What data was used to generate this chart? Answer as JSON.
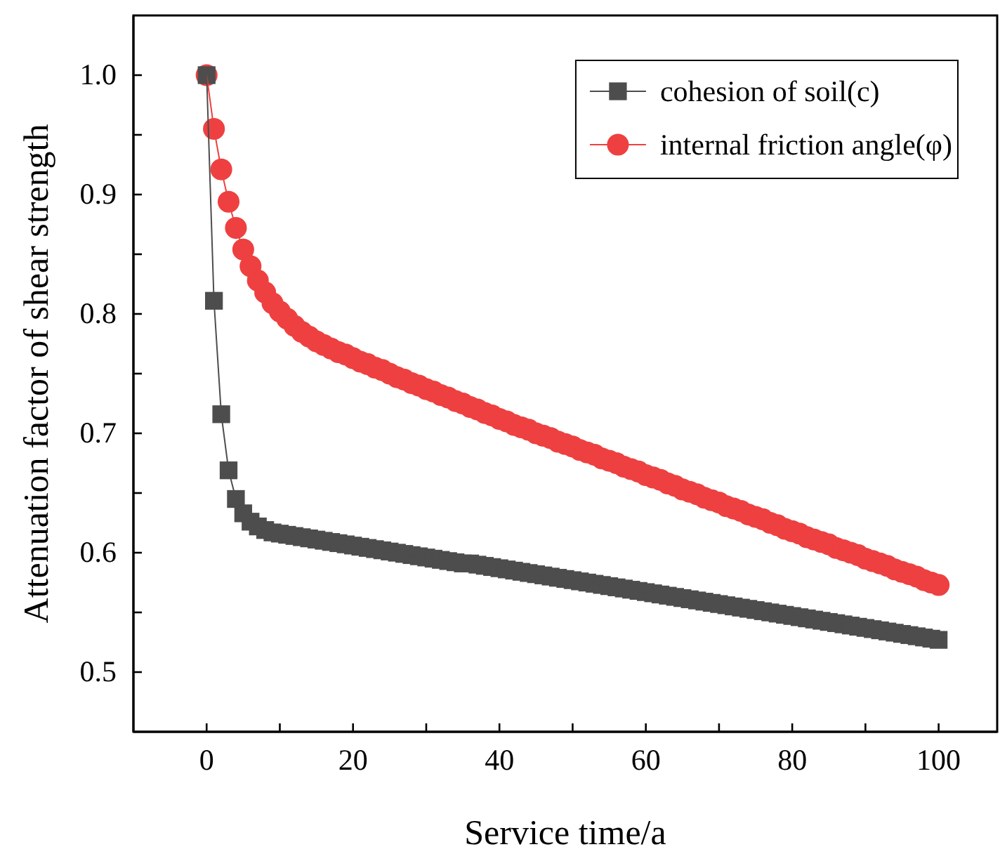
{
  "chart_data": {
    "type": "line",
    "xlabel": "Service time/a",
    "ylabel": "Attenuation factor of shear strength",
    "x": [
      0,
      1,
      2,
      3,
      4,
      5,
      6,
      7,
      8,
      9,
      10,
      11,
      12,
      13,
      14,
      15,
      16,
      17,
      18,
      19,
      20,
      21,
      22,
      23,
      24,
      25,
      26,
      27,
      28,
      29,
      30,
      31,
      32,
      33,
      34,
      35,
      36,
      37,
      38,
      39,
      40,
      41,
      42,
      43,
      44,
      45,
      46,
      47,
      48,
      49,
      50,
      51,
      52,
      53,
      54,
      55,
      56,
      57,
      58,
      59,
      60,
      61,
      62,
      63,
      64,
      65,
      66,
      67,
      68,
      69,
      70,
      71,
      72,
      73,
      74,
      75,
      76,
      77,
      78,
      79,
      80,
      81,
      82,
      83,
      84,
      85,
      86,
      87,
      88,
      89,
      90,
      91,
      92,
      93,
      94,
      95,
      96,
      97,
      98,
      99,
      100
    ],
    "series": [
      {
        "name": "cohesion of soil(c)",
        "color": "#4d4d4d",
        "marker": "square",
        "values": [
          1.0,
          0.811,
          0.716,
          0.669,
          0.645,
          0.633,
          0.626,
          0.622,
          0.619,
          0.617,
          0.616,
          0.615,
          0.614,
          0.613,
          0.612,
          0.611,
          0.61,
          0.609,
          0.608,
          0.607,
          0.606,
          0.605,
          0.604,
          0.603,
          0.602,
          0.601,
          0.6,
          0.599,
          0.598,
          0.597,
          0.596,
          0.595,
          0.594,
          0.593,
          0.592,
          0.591,
          0.591,
          0.59,
          0.589,
          0.588,
          0.587,
          0.586,
          0.585,
          0.584,
          0.583,
          0.582,
          0.581,
          0.58,
          0.579,
          0.578,
          0.577,
          0.576,
          0.575,
          0.574,
          0.573,
          0.572,
          0.571,
          0.57,
          0.569,
          0.568,
          0.567,
          0.566,
          0.565,
          0.564,
          0.563,
          0.562,
          0.561,
          0.56,
          0.559,
          0.558,
          0.557,
          0.556,
          0.555,
          0.554,
          0.553,
          0.552,
          0.551,
          0.55,
          0.549,
          0.548,
          0.547,
          0.546,
          0.545,
          0.544,
          0.543,
          0.542,
          0.541,
          0.54,
          0.539,
          0.538,
          0.537,
          0.536,
          0.535,
          0.534,
          0.533,
          0.532,
          0.531,
          0.53,
          0.529,
          0.528,
          0.527
        ]
      },
      {
        "name": "internal friction angle(φ)",
        "color": "#ee4040",
        "marker": "circle",
        "values": [
          1.0,
          0.955,
          0.921,
          0.894,
          0.872,
          0.854,
          0.84,
          0.828,
          0.818,
          0.809,
          0.802,
          0.796,
          0.79,
          0.785,
          0.781,
          0.777,
          0.774,
          0.771,
          0.768,
          0.766,
          0.763,
          0.76,
          0.758,
          0.755,
          0.753,
          0.75,
          0.747,
          0.745,
          0.742,
          0.74,
          0.737,
          0.735,
          0.732,
          0.73,
          0.727,
          0.725,
          0.722,
          0.72,
          0.717,
          0.715,
          0.712,
          0.71,
          0.707,
          0.705,
          0.703,
          0.7,
          0.698,
          0.696,
          0.693,
          0.691,
          0.689,
          0.686,
          0.684,
          0.682,
          0.679,
          0.677,
          0.675,
          0.672,
          0.67,
          0.668,
          0.665,
          0.663,
          0.661,
          0.658,
          0.656,
          0.653,
          0.651,
          0.649,
          0.646,
          0.644,
          0.642,
          0.639,
          0.637,
          0.635,
          0.632,
          0.63,
          0.628,
          0.625,
          0.623,
          0.62,
          0.618,
          0.616,
          0.613,
          0.611,
          0.609,
          0.607,
          0.604,
          0.602,
          0.6,
          0.598,
          0.595,
          0.593,
          0.591,
          0.589,
          0.586,
          0.584,
          0.582,
          0.58,
          0.577,
          0.575,
          0.573
        ]
      }
    ],
    "xlim": [
      -10,
      108
    ],
    "xticks": [
      0,
      {
        "value": 10,
        "label": null
      },
      20,
      {
        "value": 30,
        "label": null
      },
      40,
      {
        "value": 50,
        "label": null
      },
      60,
      {
        "value": 70,
        "label": null
      },
      80,
      {
        "value": 90,
        "label": null
      },
      100
    ],
    "ylim": [
      0.45,
      1.05
    ],
    "yticks": [
      {
        "value": 0.5,
        "label": "0.5"
      },
      {
        "value": 0.55,
        "label": null
      },
      {
        "value": 0.6,
        "label": "0.6"
      },
      {
        "value": 0.65,
        "label": null
      },
      {
        "value": 0.7,
        "label": "0.7"
      },
      {
        "value": 0.75,
        "label": null
      },
      {
        "value": 0.8,
        "label": "0.8"
      },
      {
        "value": 0.85,
        "label": null
      },
      {
        "value": 0.9,
        "label": "0.9"
      },
      {
        "value": 0.95,
        "label": null
      },
      {
        "value": 1.0,
        "label": "1.0"
      }
    ],
    "legend": "top right",
    "line_style": "solid"
  }
}
